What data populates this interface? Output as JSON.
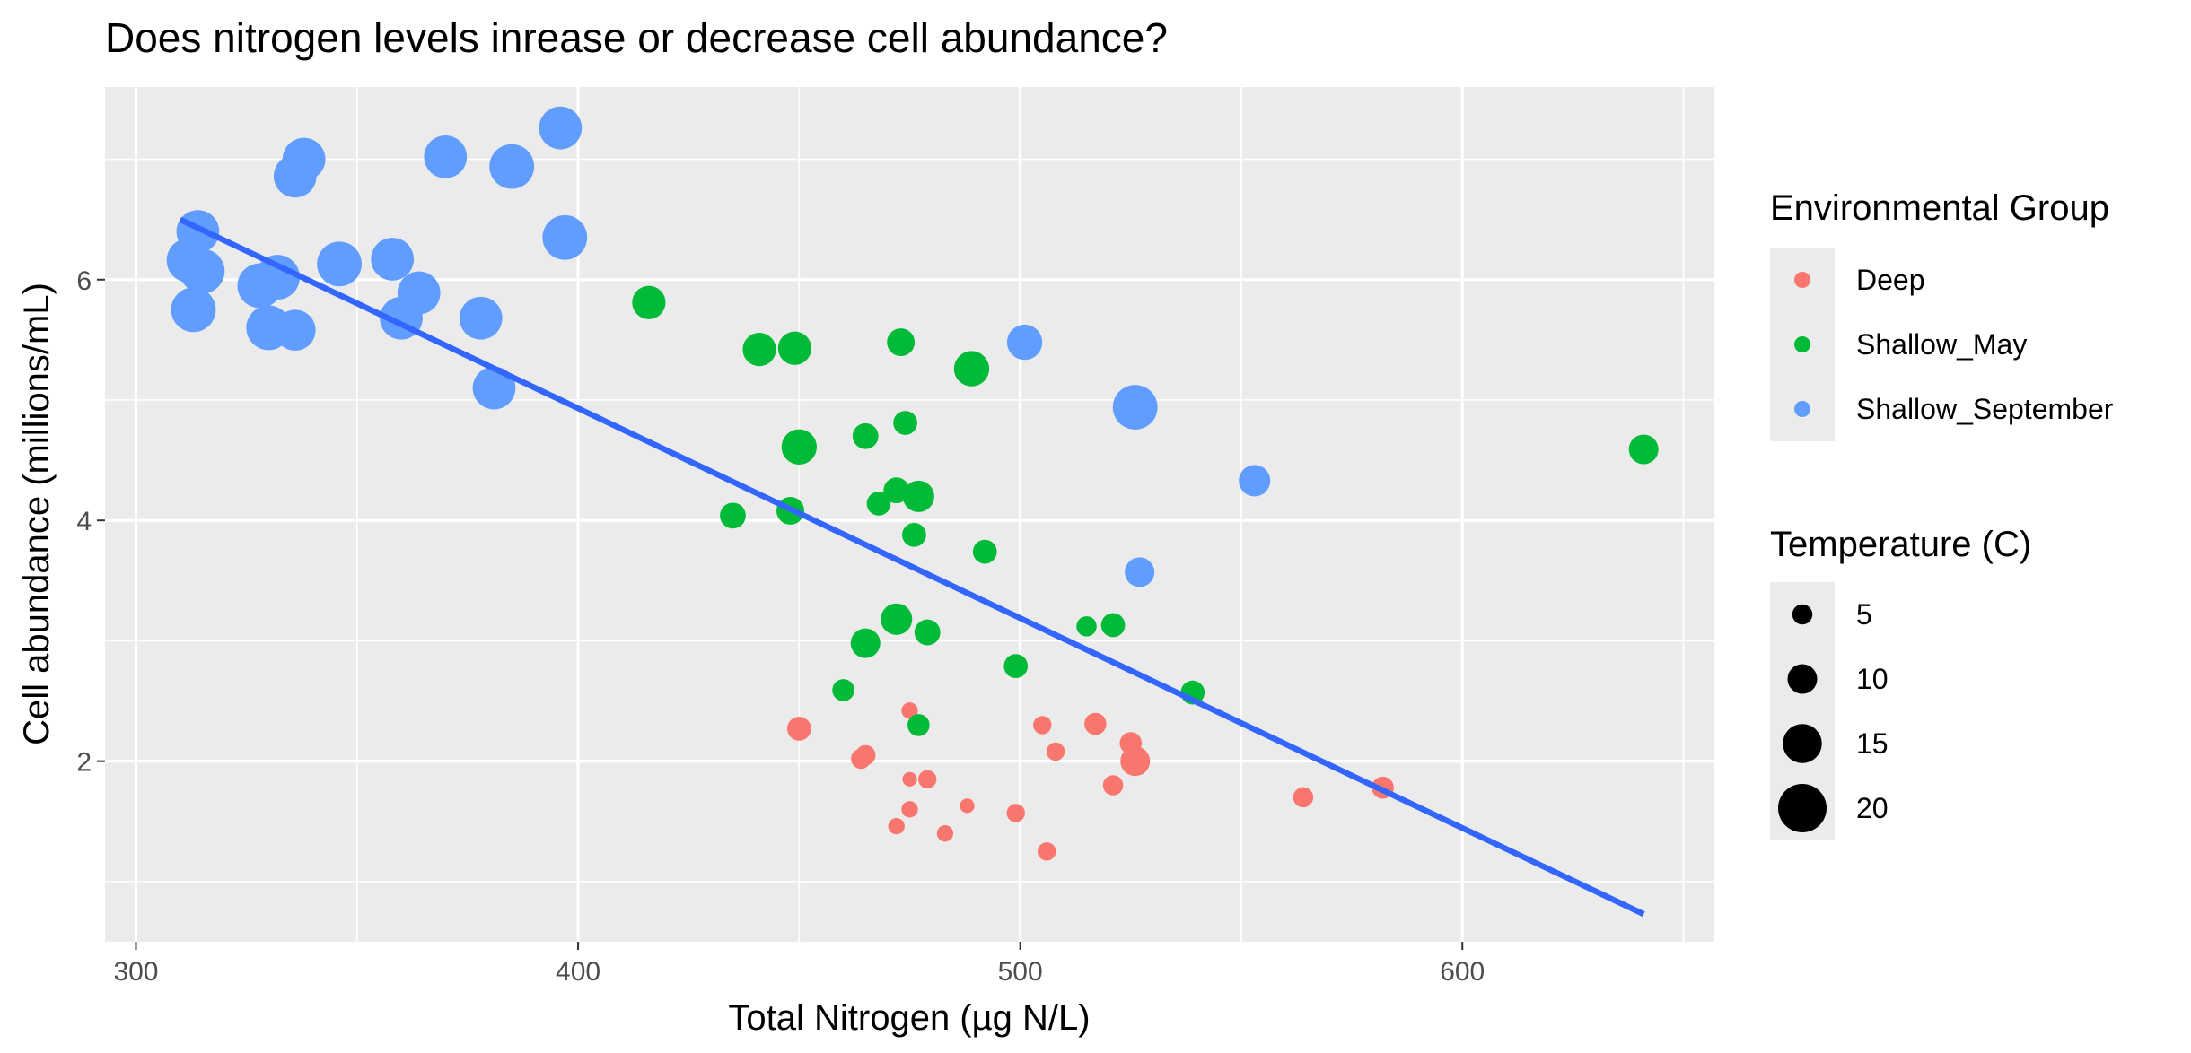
{
  "chart_data": {
    "type": "scatter",
    "title": "Does nitrogen levels inrease or decrease cell abundance?",
    "xlabel": "Total Nitrogen (µg N/L)",
    "ylabel": "Cell abundance (millions/mL)",
    "xlim": [
      293,
      657
    ],
    "ylim": [
      0.5,
      7.6
    ],
    "x_ticks": [
      300,
      400,
      500,
      600
    ],
    "y_ticks": [
      2,
      4,
      6
    ],
    "grid": true,
    "background": "#EBEBEB",
    "legend_position": "right",
    "color_legend": {
      "title": "Environmental Group",
      "entries": [
        {
          "label": "Deep",
          "color": "#F8766D"
        },
        {
          "label": "Shallow_May",
          "color": "#00BA38"
        },
        {
          "label": "Shallow_September",
          "color": "#619CFF"
        }
      ]
    },
    "size_legend": {
      "title": "Temperature (C)",
      "entries": [
        {
          "label": "5",
          "value": 5
        },
        {
          "label": "10",
          "value": 10
        },
        {
          "label": "15",
          "value": 15
        },
        {
          "label": "20",
          "value": 20
        }
      ]
    },
    "trend_line": {
      "color": "#3366FF",
      "x": [
        310,
        641
      ],
      "y": [
        6.5,
        0.73
      ]
    },
    "series": [
      {
        "name": "Deep",
        "color": "#F8766D",
        "points": [
          {
            "x": 450,
            "y": 2.27,
            "temp": 7
          },
          {
            "x": 465,
            "y": 2.05,
            "temp": 5
          },
          {
            "x": 464,
            "y": 2.02,
            "temp": 5
          },
          {
            "x": 475,
            "y": 2.42,
            "temp": 3
          },
          {
            "x": 475,
            "y": 1.85,
            "temp": 2
          },
          {
            "x": 479,
            "y": 1.85,
            "temp": 4
          },
          {
            "x": 475,
            "y": 1.6,
            "temp": 3
          },
          {
            "x": 472,
            "y": 1.46,
            "temp": 3
          },
          {
            "x": 483,
            "y": 1.4,
            "temp": 3
          },
          {
            "x": 488,
            "y": 1.63,
            "temp": 2
          },
          {
            "x": 499,
            "y": 1.57,
            "temp": 4
          },
          {
            "x": 505,
            "y": 2.3,
            "temp": 4
          },
          {
            "x": 508,
            "y": 2.08,
            "temp": 4
          },
          {
            "x": 506,
            "y": 1.25,
            "temp": 4
          },
          {
            "x": 517,
            "y": 2.31,
            "temp": 6
          },
          {
            "x": 521,
            "y": 1.8,
            "temp": 5
          },
          {
            "x": 525,
            "y": 2.15,
            "temp": 6
          },
          {
            "x": 526,
            "y": 2.0,
            "temp": 10
          },
          {
            "x": 564,
            "y": 1.7,
            "temp": 5
          },
          {
            "x": 582,
            "y": 1.78,
            "temp": 6
          }
        ]
      },
      {
        "name": "Shallow_May",
        "color": "#00BA38",
        "points": [
          {
            "x": 416,
            "y": 5.81,
            "temp": 12
          },
          {
            "x": 441,
            "y": 5.42,
            "temp": 12
          },
          {
            "x": 449,
            "y": 5.43,
            "temp": 12
          },
          {
            "x": 473,
            "y": 5.48,
            "temp": 9
          },
          {
            "x": 489,
            "y": 5.26,
            "temp": 13
          },
          {
            "x": 450,
            "y": 4.61,
            "temp": 13
          },
          {
            "x": 465,
            "y": 4.7,
            "temp": 8
          },
          {
            "x": 474,
            "y": 4.81,
            "temp": 7
          },
          {
            "x": 472,
            "y": 4.25,
            "temp": 8
          },
          {
            "x": 468,
            "y": 4.14,
            "temp": 7
          },
          {
            "x": 477,
            "y": 4.2,
            "temp": 11
          },
          {
            "x": 435,
            "y": 4.04,
            "temp": 8
          },
          {
            "x": 448,
            "y": 4.08,
            "temp": 9
          },
          {
            "x": 476,
            "y": 3.88,
            "temp": 7
          },
          {
            "x": 492,
            "y": 3.74,
            "temp": 7
          },
          {
            "x": 472,
            "y": 3.18,
            "temp": 11
          },
          {
            "x": 479,
            "y": 3.07,
            "temp": 8
          },
          {
            "x": 465,
            "y": 2.98,
            "temp": 10
          },
          {
            "x": 515,
            "y": 3.12,
            "temp": 5
          },
          {
            "x": 521,
            "y": 3.13,
            "temp": 7
          },
          {
            "x": 499,
            "y": 2.79,
            "temp": 7
          },
          {
            "x": 460,
            "y": 2.59,
            "temp": 6
          },
          {
            "x": 477,
            "y": 2.3,
            "temp": 6
          },
          {
            "x": 539,
            "y": 2.57,
            "temp": 7
          },
          {
            "x": 641,
            "y": 4.59,
            "temp": 10
          }
        ]
      },
      {
        "name": "Shallow_September",
        "color": "#619CFF",
        "points": [
          {
            "x": 312,
            "y": 6.16,
            "temp": 18
          },
          {
            "x": 315,
            "y": 6.07,
            "temp": 18
          },
          {
            "x": 314,
            "y": 6.4,
            "temp": 17
          },
          {
            "x": 313,
            "y": 5.75,
            "temp": 18
          },
          {
            "x": 328,
            "y": 5.95,
            "temp": 18
          },
          {
            "x": 332,
            "y": 6.02,
            "temp": 18
          },
          {
            "x": 330,
            "y": 5.6,
            "temp": 18
          },
          {
            "x": 336,
            "y": 5.58,
            "temp": 16
          },
          {
            "x": 338,
            "y": 7.0,
            "temp": 17
          },
          {
            "x": 336,
            "y": 6.86,
            "temp": 17
          },
          {
            "x": 346,
            "y": 6.13,
            "temp": 18
          },
          {
            "x": 358,
            "y": 6.17,
            "temp": 17
          },
          {
            "x": 360,
            "y": 5.68,
            "temp": 17
          },
          {
            "x": 364,
            "y": 5.89,
            "temp": 17
          },
          {
            "x": 370,
            "y": 7.02,
            "temp": 17
          },
          {
            "x": 378,
            "y": 5.68,
            "temp": 17
          },
          {
            "x": 381,
            "y": 5.1,
            "temp": 17
          },
          {
            "x": 385,
            "y": 6.94,
            "temp": 18
          },
          {
            "x": 396,
            "y": 7.26,
            "temp": 17
          },
          {
            "x": 397,
            "y": 6.35,
            "temp": 18
          },
          {
            "x": 501,
            "y": 5.48,
            "temp": 13
          },
          {
            "x": 526,
            "y": 4.94,
            "temp": 18
          },
          {
            "x": 553,
            "y": 4.33,
            "temp": 11
          },
          {
            "x": 527,
            "y": 3.57,
            "temp": 10
          }
        ]
      }
    ]
  }
}
